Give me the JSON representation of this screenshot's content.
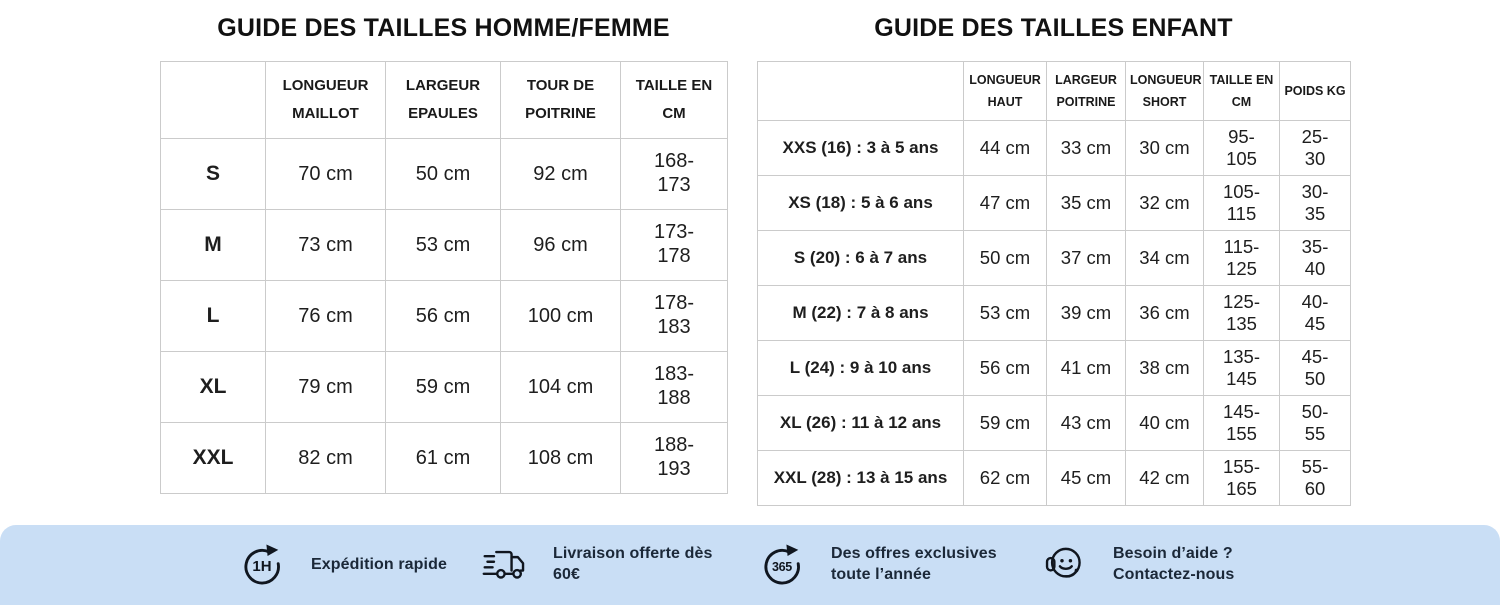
{
  "adult_table": {
    "title": "GUIDE DES TAILLES HOMME/FEMME",
    "headers": [
      "",
      "LONGUEUR MAILLOT",
      "LARGEUR EPAULES",
      "TOUR DE POITRINE",
      "TAILLE EN CM"
    ],
    "rows": [
      [
        "S",
        "70 cm",
        "50 cm",
        "92 cm",
        "168-173"
      ],
      [
        "M",
        "73 cm",
        "53 cm",
        "96 cm",
        "173-178"
      ],
      [
        "L",
        "76 cm",
        "56 cm",
        "100 cm",
        "178-183"
      ],
      [
        "XL",
        "79 cm",
        "59 cm",
        "104 cm",
        "183-188"
      ],
      [
        "XXL",
        "82 cm",
        "61 cm",
        "108 cm",
        "188-193"
      ]
    ]
  },
  "kids_table": {
    "title": "GUIDE DES TAILLES ENFANT",
    "headers": [
      "",
      "LONGUEUR HAUT",
      "LARGEUR POITRINE",
      "LONGUEUR SHORT",
      "TAILLE EN CM",
      "POIDS KG"
    ],
    "rows": [
      [
        "XXS (16) : 3 à 5 ans",
        "44 cm",
        "33 cm",
        "30 cm",
        "95-105",
        "25-30"
      ],
      [
        "XS (18) : 5 à 6 ans",
        "47 cm",
        "35 cm",
        "32 cm",
        "105-115",
        "30-35"
      ],
      [
        "S (20) : 6 à 7 ans",
        "50 cm",
        "37 cm",
        "34 cm",
        "115-125",
        "35-40"
      ],
      [
        "M (22) : 7 à 8 ans",
        "53 cm",
        "39 cm",
        "36 cm",
        "125-135",
        "40-45"
      ],
      [
        "L (24) : 9 à 10 ans",
        "56 cm",
        "41 cm",
        "38 cm",
        "135-145",
        "45-50"
      ],
      [
        "XL (26) : 11 à 12 ans",
        "59 cm",
        "43 cm",
        "40 cm",
        "145-155",
        "50-55"
      ],
      [
        "XXL (28) : 13 à 15 ans",
        "62 cm",
        "45 cm",
        "42 cm",
        "155-165",
        "55-60"
      ]
    ]
  },
  "footer": {
    "items": [
      {
        "icon": "one-hour-dispatch-icon",
        "badge": "1H",
        "text": "Expédition rapide"
      },
      {
        "icon": "delivery-truck-icon",
        "badge": "",
        "text": "Livraison offerte dès 60€"
      },
      {
        "icon": "year-round-offers-icon",
        "badge": "365",
        "text": "Des offres exclusives toute l’année"
      },
      {
        "icon": "headset-support-icon",
        "badge": "",
        "text": "Besoin d’aide ? Contactez-nous"
      }
    ]
  },
  "colors": {
    "footer_background": "#c9def5",
    "footer_text": "#1b2838",
    "table_border": "#cbcbcb",
    "title_text": "#111111"
  }
}
